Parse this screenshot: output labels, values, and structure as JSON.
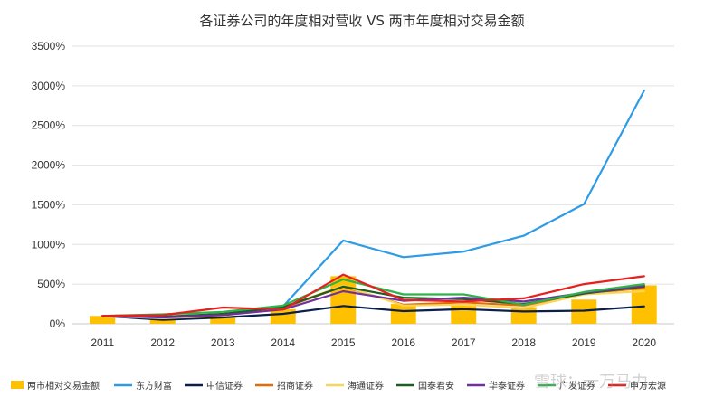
{
  "chart_data": {
    "type": "bar+line",
    "title": "各证券公司的年度相对营收 VS 两市年度相对交易金额",
    "categories": [
      "2011",
      "2012",
      "2013",
      "2014",
      "2015",
      "2016",
      "2017",
      "2018",
      "2019",
      "2020"
    ],
    "ylim": [
      0,
      3500
    ],
    "yticks": [
      0,
      500,
      1000,
      1500,
      2000,
      2500,
      3000,
      3500
    ],
    "ytick_labels": [
      "0%",
      "500%",
      "1000%",
      "1500%",
      "2000%",
      "2500%",
      "3000%",
      "3500%"
    ],
    "xlabel": "",
    "ylabel": "",
    "grid": true,
    "legend_position": "bottom",
    "bar_series": {
      "name": "两市相对交易金额",
      "color": "#FFC000",
      "values": [
        100,
        60,
        75,
        185,
        600,
        250,
        250,
        210,
        305,
        485
      ]
    },
    "series": [
      {
        "name": "东方财富",
        "color": "#2E9BE6",
        "values": [
          100,
          80,
          105,
          220,
          1050,
          840,
          910,
          1110,
          1510,
          2940
        ]
      },
      {
        "name": "中信证券",
        "color": "#0B1F4B",
        "values": [
          100,
          50,
          80,
          125,
          225,
          160,
          185,
          155,
          165,
          220
        ]
      },
      {
        "name": "招商证券",
        "color": "#E36C09",
        "values": [
          100,
          75,
          110,
          200,
          470,
          240,
          270,
          230,
          380,
          450
        ]
      },
      {
        "name": "海通证券",
        "color": "#FAD55C",
        "values": [
          100,
          70,
          100,
          210,
          480,
          230,
          240,
          200,
          370,
          410
        ]
      },
      {
        "name": "国泰君安",
        "color": "#1E5E1E",
        "values": [
          100,
          90,
          125,
          210,
          470,
          330,
          310,
          250,
          380,
          470
        ]
      },
      {
        "name": "华泰证券",
        "color": "#7030A0",
        "values": [
          100,
          80,
          110,
          180,
          410,
          290,
          330,
          280,
          390,
          480
        ]
      },
      {
        "name": "广发证券",
        "color": "#2DB34A",
        "values": [
          100,
          120,
          150,
          230,
          560,
          370,
          370,
          240,
          400,
          500
        ]
      },
      {
        "name": "申万宏源",
        "color": "#E81F1F",
        "values": [
          100,
          110,
          205,
          180,
          620,
          300,
          280,
          320,
          500,
          600
        ]
      }
    ]
  },
  "watermark": "雪球：一万马力"
}
